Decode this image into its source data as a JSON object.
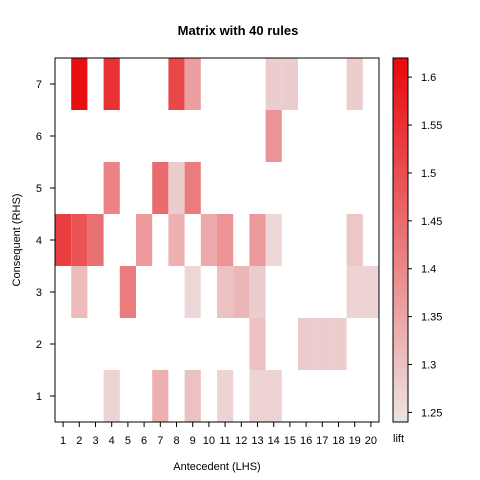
{
  "chart_data": {
    "type": "heatmap",
    "title": "Matrix with 40 rules",
    "xlabel": "Antecedent (LHS)",
    "ylabel": "Consequent (RHS)",
    "x_ticks": [
      "1",
      "2",
      "3",
      "4",
      "5",
      "6",
      "7",
      "8",
      "9",
      "10",
      "11",
      "12",
      "13",
      "14",
      "15",
      "16",
      "17",
      "18",
      "19",
      "20"
    ],
    "y_ticks": [
      "1",
      "2",
      "3",
      "4",
      "5",
      "6",
      "7"
    ],
    "xlim": [
      0.5,
      20.5
    ],
    "ylim": [
      0.5,
      7.5
    ],
    "colorbar": {
      "label": "lift",
      "range": [
        1.24,
        1.62
      ],
      "ticks": [
        "1.25",
        "1.3",
        "1.35",
        "1.4",
        "1.45",
        "1.5",
        "1.55",
        "1.6"
      ],
      "low_color": "#ede4e4",
      "high_color": "#e8090d"
    },
    "cells": [
      {
        "x": 1,
        "y": 4,
        "lift": 1.53
      },
      {
        "x": 2,
        "y": 7,
        "lift": 1.61
      },
      {
        "x": 2,
        "y": 4,
        "lift": 1.49
      },
      {
        "x": 2,
        "y": 3,
        "lift": 1.31
      },
      {
        "x": 3,
        "y": 4,
        "lift": 1.44
      },
      {
        "x": 4,
        "y": 7,
        "lift": 1.55
      },
      {
        "x": 4,
        "y": 5,
        "lift": 1.41
      },
      {
        "x": 4,
        "y": 1,
        "lift": 1.27
      },
      {
        "x": 5,
        "y": 3,
        "lift": 1.42
      },
      {
        "x": 6,
        "y": 4,
        "lift": 1.37
      },
      {
        "x": 7,
        "y": 5,
        "lift": 1.45
      },
      {
        "x": 7,
        "y": 1,
        "lift": 1.33
      },
      {
        "x": 8,
        "y": 7,
        "lift": 1.51
      },
      {
        "x": 8,
        "y": 5,
        "lift": 1.28
      },
      {
        "x": 8,
        "y": 4,
        "lift": 1.33
      },
      {
        "x": 9,
        "y": 7,
        "lift": 1.36
      },
      {
        "x": 9,
        "y": 5,
        "lift": 1.42
      },
      {
        "x": 9,
        "y": 3,
        "lift": 1.26
      },
      {
        "x": 9,
        "y": 1,
        "lift": 1.3
      },
      {
        "x": 10,
        "y": 4,
        "lift": 1.34
      },
      {
        "x": 11,
        "y": 4,
        "lift": 1.38
      },
      {
        "x": 11,
        "y": 3,
        "lift": 1.3
      },
      {
        "x": 11,
        "y": 1,
        "lift": 1.27
      },
      {
        "x": 12,
        "y": 3,
        "lift": 1.32
      },
      {
        "x": 13,
        "y": 4,
        "lift": 1.37
      },
      {
        "x": 13,
        "y": 3,
        "lift": 1.28
      },
      {
        "x": 13,
        "y": 2,
        "lift": 1.3
      },
      {
        "x": 13,
        "y": 1,
        "lift": 1.27
      },
      {
        "x": 14,
        "y": 7,
        "lift": 1.28
      },
      {
        "x": 14,
        "y": 6,
        "lift": 1.38
      },
      {
        "x": 14,
        "y": 4,
        "lift": 1.26
      },
      {
        "x": 14,
        "y": 1,
        "lift": 1.27
      },
      {
        "x": 15,
        "y": 7,
        "lift": 1.28
      },
      {
        "x": 16,
        "y": 2,
        "lift": 1.28
      },
      {
        "x": 17,
        "y": 2,
        "lift": 1.28
      },
      {
        "x": 18,
        "y": 2,
        "lift": 1.28
      },
      {
        "x": 19,
        "y": 7,
        "lift": 1.28
      },
      {
        "x": 19,
        "y": 4,
        "lift": 1.29
      },
      {
        "x": 19,
        "y": 3,
        "lift": 1.27
      },
      {
        "x": 20,
        "y": 3,
        "lift": 1.27
      }
    ]
  }
}
